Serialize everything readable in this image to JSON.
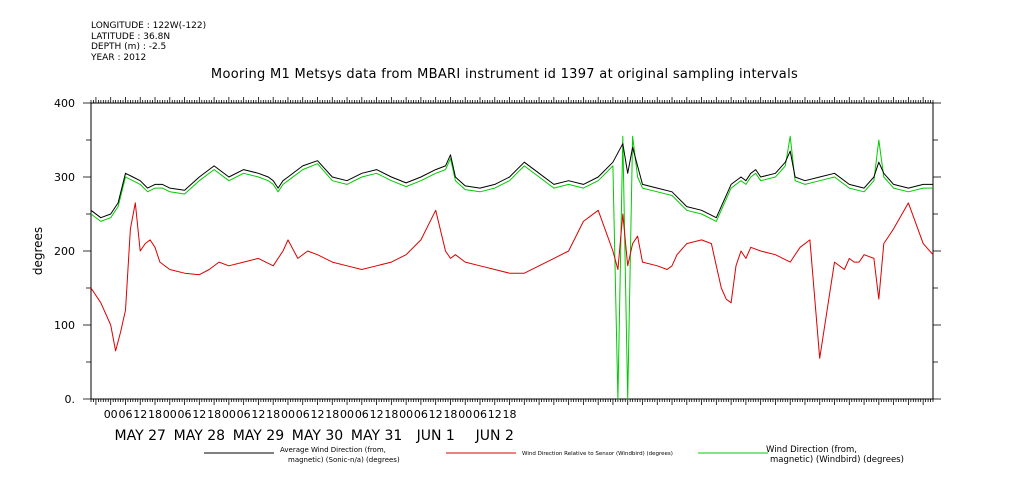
{
  "header": {
    "longitude": "LONGITUDE : 122W(-122)",
    "latitude": "LATITUDE : 36.8N",
    "depth": "DEPTH (m) : -2.5",
    "year": "YEAR : 2012"
  },
  "chart_data": {
    "type": "line",
    "title": "Mooring M1 Metsys data from MBARI instrument id 1397 at original sampling intervals",
    "ylabel": "degrees",
    "ylim": [
      0,
      400
    ],
    "y_ticks": [
      0,
      100,
      200,
      300,
      400
    ],
    "y_tick_labels": [
      "0.",
      "100",
      "200",
      "300",
      "400"
    ],
    "xlim_hours": [
      -8,
      334
    ],
    "x_hour_labels": [
      "00",
      "06",
      "12",
      "18",
      "00",
      "06",
      "12",
      "18",
      "00",
      "06",
      "12",
      "18",
      "00",
      "06",
      "12",
      "18",
      "00",
      "06",
      "12",
      "18",
      "00",
      "06",
      "12",
      "18",
      "00",
      "06",
      "12",
      "18"
    ],
    "x_day_labels": [
      "MAY 27",
      "MAY 28",
      "MAY 29",
      "MAY 30",
      "MAY 31",
      "JUN  1",
      "JUN  2"
    ],
    "series": [
      {
        "name": "Average Wind Direction (from, magnetic) (Sonic-n/a) (degrees)",
        "color": "#000000",
        "x": [
          -8,
          -4,
          0,
          3,
          6,
          9,
          12,
          15,
          18,
          21,
          24,
          30,
          36,
          42,
          48,
          54,
          60,
          64,
          66,
          68,
          70,
          72,
          78,
          84,
          90,
          96,
          102,
          108,
          114,
          120,
          126,
          132,
          136,
          138,
          140,
          144,
          150,
          156,
          162,
          168,
          174,
          180,
          186,
          192,
          198,
          204,
          208,
          210,
          212,
          216,
          222,
          228,
          234,
          240,
          246,
          252,
          256,
          258,
          260,
          262,
          264,
          270,
          274,
          276,
          278,
          282,
          288,
          294,
          300,
          306,
          310,
          312,
          314,
          318,
          324,
          330,
          334
        ],
        "y": [
          255,
          245,
          250,
          265,
          305,
          300,
          295,
          285,
          290,
          290,
          285,
          282,
          300,
          315,
          300,
          310,
          305,
          300,
          295,
          285,
          295,
          300,
          315,
          322,
          300,
          295,
          305,
          310,
          300,
          292,
          300,
          310,
          315,
          330,
          300,
          288,
          285,
          290,
          300,
          320,
          305,
          290,
          295,
          290,
          300,
          320,
          345,
          305,
          340,
          290,
          285,
          280,
          260,
          255,
          245,
          290,
          300,
          295,
          305,
          310,
          300,
          305,
          320,
          335,
          300,
          295,
          300,
          305,
          290,
          285,
          300,
          320,
          305,
          290,
          285,
          290,
          290
        ]
      },
      {
        "name": "Wind Direction Relative to Sensor (Windbird) (degrees)",
        "color": "#dd0000",
        "x": [
          -8,
          -4,
          0,
          2,
          4,
          6,
          8,
          10,
          12,
          14,
          16,
          18,
          20,
          24,
          30,
          36,
          40,
          44,
          48,
          54,
          60,
          66,
          70,
          72,
          76,
          80,
          84,
          90,
          96,
          102,
          108,
          114,
          120,
          126,
          132,
          136,
          138,
          140,
          144,
          150,
          156,
          162,
          168,
          174,
          180,
          186,
          192,
          198,
          204,
          206,
          208,
          210,
          212,
          214,
          216,
          222,
          226,
          228,
          230,
          234,
          240,
          244,
          246,
          248,
          250,
          252,
          254,
          256,
          258,
          260,
          264,
          270,
          276,
          280,
          284,
          288,
          294,
          298,
          300,
          302,
          304,
          306,
          310,
          312,
          314,
          318,
          324,
          330,
          334
        ],
        "y": [
          150,
          130,
          100,
          65,
          90,
          120,
          230,
          265,
          200,
          210,
          215,
          205,
          185,
          175,
          170,
          168,
          175,
          185,
          180,
          185,
          190,
          180,
          200,
          215,
          190,
          200,
          195,
          185,
          180,
          175,
          180,
          185,
          195,
          215,
          255,
          200,
          190,
          195,
          185,
          180,
          175,
          170,
          170,
          180,
          190,
          200,
          240,
          255,
          200,
          175,
          250,
          180,
          210,
          220,
          185,
          180,
          175,
          180,
          195,
          210,
          215,
          210,
          180,
          150,
          135,
          130,
          180,
          200,
          190,
          205,
          200,
          195,
          185,
          205,
          215,
          55,
          185,
          175,
          190,
          185,
          185,
          195,
          190,
          135,
          210,
          230,
          265,
          210,
          195
        ]
      },
      {
        "name": "Wind Direction (from, magnetic) (Windbird) (degrees)",
        "color": "#00cc00",
        "x": [
          -8,
          -4,
          0,
          3,
          6,
          9,
          12,
          15,
          18,
          21,
          24,
          30,
          36,
          42,
          48,
          54,
          60,
          64,
          66,
          68,
          70,
          72,
          78,
          84,
          90,
          96,
          102,
          108,
          114,
          120,
          126,
          132,
          136,
          138,
          140,
          144,
          150,
          156,
          162,
          168,
          174,
          180,
          186,
          192,
          198,
          204,
          206,
          208,
          210,
          212,
          214,
          216,
          222,
          228,
          234,
          240,
          246,
          252,
          256,
          258,
          260,
          262,
          264,
          270,
          274,
          276,
          278,
          282,
          288,
          294,
          300,
          306,
          310,
          312,
          314,
          318,
          324,
          330,
          334
        ],
        "y": [
          250,
          240,
          245,
          260,
          300,
          295,
          290,
          280,
          285,
          285,
          280,
          277,
          295,
          310,
          295,
          305,
          300,
          295,
          290,
          280,
          290,
          295,
          310,
          318,
          295,
          290,
          300,
          305,
          295,
          287,
          295,
          305,
          310,
          325,
          295,
          283,
          280,
          285,
          295,
          315,
          300,
          285,
          290,
          285,
          295,
          315,
          0,
          355,
          0,
          355,
          300,
          285,
          280,
          275,
          255,
          250,
          240,
          285,
          295,
          290,
          300,
          305,
          295,
          300,
          315,
          355,
          295,
          290,
          295,
          300,
          285,
          280,
          295,
          350,
          300,
          285,
          280,
          285,
          285
        ]
      }
    ],
    "legend": {
      "position": "bottom",
      "entries": [
        {
          "line1": "Average Wind Direction (from,",
          "line2": "magnetic) (Sonic-n/a) (degrees)"
        },
        {
          "line1": "Wind Direction Relative to Sensor (Windbird) (degrees)",
          "line2": ""
        },
        {
          "line1": "Wind Direction (from,",
          "line2": "magnetic) (Windbird) (degrees)"
        }
      ]
    },
    "grid": false
  }
}
